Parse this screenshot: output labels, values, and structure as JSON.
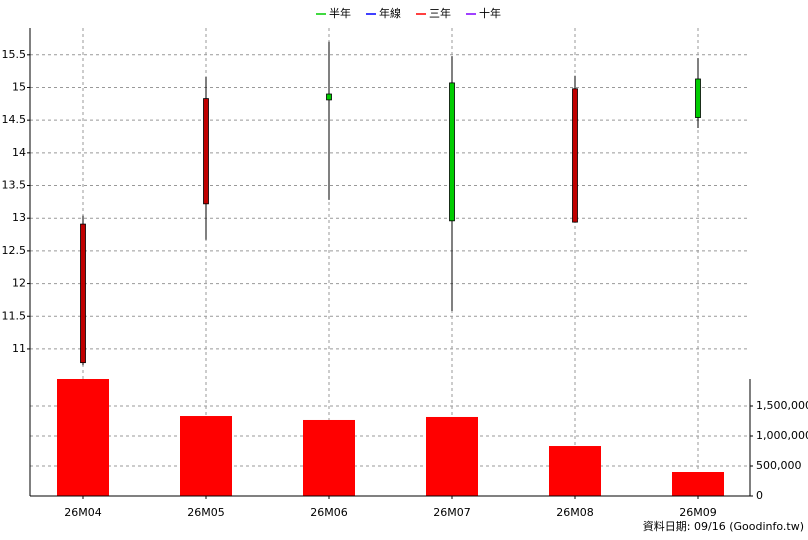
{
  "chart_data": {
    "type": "candlestick",
    "categories": [
      "26M04",
      "26M05",
      "26M06",
      "26M07",
      "26M08",
      "26M09"
    ],
    "open": [
      10.79,
      13.22,
      14.9,
      15.07,
      12.94,
      15.13
    ],
    "high": [
      13.04,
      15.16,
      15.7,
      15.48,
      15.18,
      15.45
    ],
    "low": [
      10.75,
      12.67,
      13.28,
      11.58,
      12.94,
      14.38
    ],
    "close": [
      12.91,
      14.83,
      14.81,
      12.96,
      14.98,
      14.54
    ],
    "up_color": "#c00000",
    "down_color": "#00cc00",
    "ylim": [
      10.54,
      15.91
    ],
    "yticks": [
      11,
      11.5,
      12,
      12.5,
      13,
      13.5,
      14,
      14.5,
      15,
      15.5
    ],
    "volume": {
      "values": [
        1950000,
        1333000,
        1267000,
        1317000,
        833000,
        400000
      ],
      "color": "#ff0000"
    },
    "y2lim": [
      0,
      1950000
    ],
    "y2ticks": [
      0,
      {
        "value": 500000,
        "label": "500,000"
      },
      {
        "value": 1000000,
        "label": "1,000,000"
      },
      {
        "value": 1500000,
        "label": "1,500,000"
      }
    ],
    "legend": [
      {
        "name": "半年",
        "color": "#00cc00"
      },
      {
        "name": "年線",
        "color": "#0000ff"
      },
      {
        "name": "三年",
        "color": "#ff0000"
      },
      {
        "name": "十年",
        "color": "#8000ff"
      }
    ],
    "grid": true,
    "source": "資料日期: 09/16  (Goodinfo.tw)"
  }
}
